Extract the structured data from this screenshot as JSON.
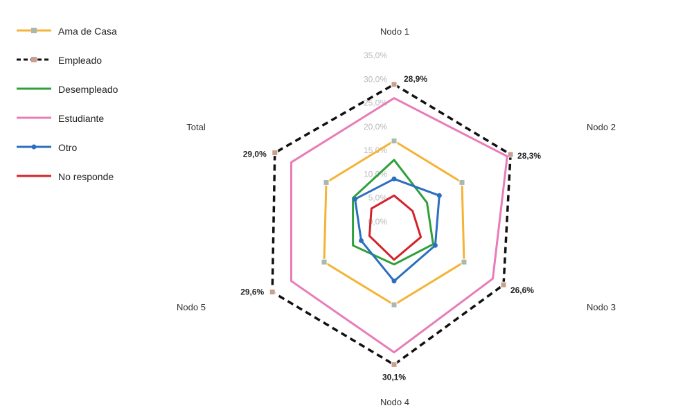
{
  "chart_data": {
    "type": "radar",
    "title": "",
    "axes": [
      "Nodo 1",
      "Nodo 2",
      "Nodo 3",
      "Nodo 4",
      "Nodo 5",
      "Total"
    ],
    "r_ticks": [
      "0,0%",
      "5,0%",
      "10,0%",
      "15,0%",
      "20,0%",
      "25,0%",
      "30,0%",
      "35,0%"
    ],
    "r_range": [
      0,
      35
    ],
    "legend_position": "top-left",
    "grid": false,
    "series": [
      {
        "name": "Ama de Casa",
        "color": "#f5b335",
        "marker": "square",
        "values": [
          17.0,
          16.5,
          17.0,
          17.5,
          17.0,
          16.5
        ]
      },
      {
        "name": "Empleado",
        "color": "#111111",
        "marker": "square",
        "dashed": true,
        "values": [
          28.9,
          28.3,
          26.6,
          30.1,
          29.6,
          29.0
        ]
      },
      {
        "name": "Desempleado",
        "color": "#2ea03a",
        "marker": "none",
        "values": [
          13.0,
          8.0,
          9.5,
          9.0,
          10.0,
          10.0
        ]
      },
      {
        "name": "Estudiante",
        "color": "#e87cb8",
        "marker": "none",
        "values": [
          26.0,
          27.5,
          24.0,
          27.5,
          25.0,
          25.0
        ]
      },
      {
        "name": "Otro",
        "color": "#2b6fbf",
        "marker": "circle",
        "values": [
          9.0,
          11.0,
          10.0,
          12.5,
          8.0,
          9.5
        ]
      },
      {
        "name": "No responde",
        "color": "#d3232a",
        "marker": "none",
        "values": [
          5.5,
          4.5,
          6.5,
          8.0,
          6.0,
          5.5
        ]
      }
    ],
    "value_labels": [
      "28,9%",
      "28,3%",
      "26,6%",
      "30,1%",
      "29,6%",
      "29,0%"
    ]
  }
}
